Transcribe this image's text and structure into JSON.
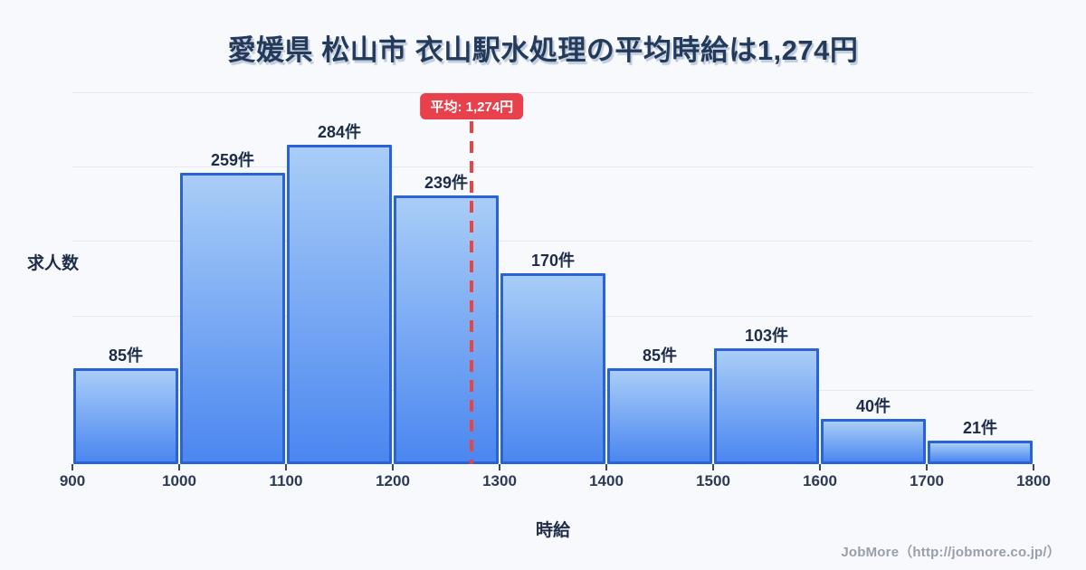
{
  "page": {
    "title": "愛媛県 松山市 衣山駅水処理の平均時給は1,274円",
    "footer": "JobMore（http://jobmore.co.jp/）"
  },
  "chart_data": {
    "type": "bar",
    "subtype": "histogram",
    "title": "愛媛県 松山市 衣山駅水処理の平均時給は1,274円",
    "xlabel": "時給",
    "ylabel": "求人数",
    "bin_edges": [
      900,
      1000,
      1100,
      1200,
      1300,
      1400,
      1500,
      1600,
      1700,
      1800
    ],
    "values": [
      85,
      259,
      284,
      239,
      170,
      85,
      103,
      40,
      21
    ],
    "bar_labels": [
      "85件",
      "259件",
      "284件",
      "239件",
      "170件",
      "85件",
      "103件",
      "40件",
      "21件"
    ],
    "value_unit": "件",
    "average": 1274,
    "average_label": "平均: 1,274円",
    "x_range": [
      900,
      1800
    ],
    "grid": true,
    "legend": "none",
    "colors": {
      "background": "#f7f9fc",
      "bar_gradient_top": "#a9cdf7",
      "bar_gradient_bottom": "#4b87f0",
      "bar_border": "#2a63d8",
      "average_line": "#e64545",
      "badge_background": "#e8414b",
      "badge_text": "#ffffff",
      "text": "#1e2c4a",
      "gridline": "#e4e9f2",
      "footer_text": "#999fa9"
    }
  }
}
